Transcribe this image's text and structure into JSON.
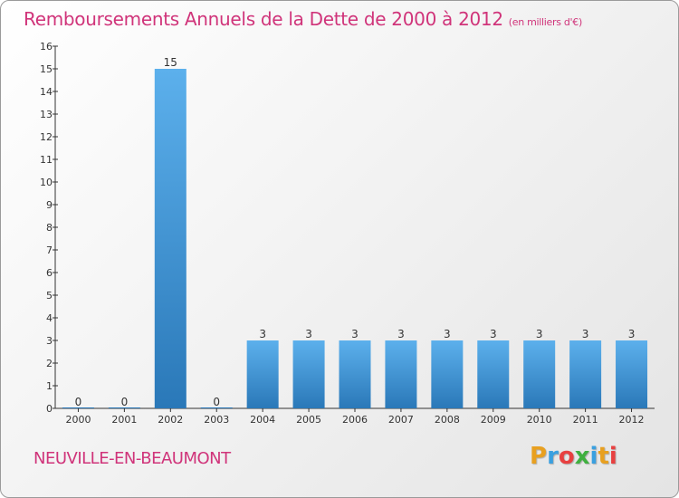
{
  "header": {
    "title": "Remboursements Annuels de la Dette de 2000 à 2012",
    "unit": "(en milliers d'€)"
  },
  "footer": {
    "town": "NEUVILLE-EN-BEAUMONT",
    "logo": "Proxiti"
  },
  "colors": {
    "title": "#d0347a",
    "bar_top": "#5cb0ec",
    "bar_bottom": "#2a78b8",
    "logo": [
      "#e8a020",
      "#3aa0e0",
      "#e84040",
      "#40b040",
      "#3aa0e0",
      "#e8a020",
      "#e84040"
    ]
  },
  "chart_data": {
    "type": "bar",
    "title": "Remboursements Annuels de la Dette de 2000 à 2012",
    "subtitle": "(en milliers d'€)",
    "categories": [
      "2000",
      "2001",
      "2002",
      "2003",
      "2004",
      "2005",
      "2006",
      "2007",
      "2008",
      "2009",
      "2010",
      "2011",
      "2012"
    ],
    "values": [
      0,
      0,
      15,
      0,
      3,
      3,
      3,
      3,
      3,
      3,
      3,
      3,
      3
    ],
    "data_labels": [
      "0",
      "0",
      "15",
      "0",
      "3",
      "3",
      "3",
      "3",
      "3",
      "3",
      "3",
      "3",
      "3"
    ],
    "yticks": [
      "0",
      "1",
      "2",
      "3",
      "4",
      "5",
      "6",
      "7",
      "8",
      "9",
      "10",
      "11",
      "12",
      "13",
      "14",
      "15",
      "16"
    ],
    "ylim": [
      0,
      16
    ],
    "grid": false,
    "legend": "none"
  }
}
